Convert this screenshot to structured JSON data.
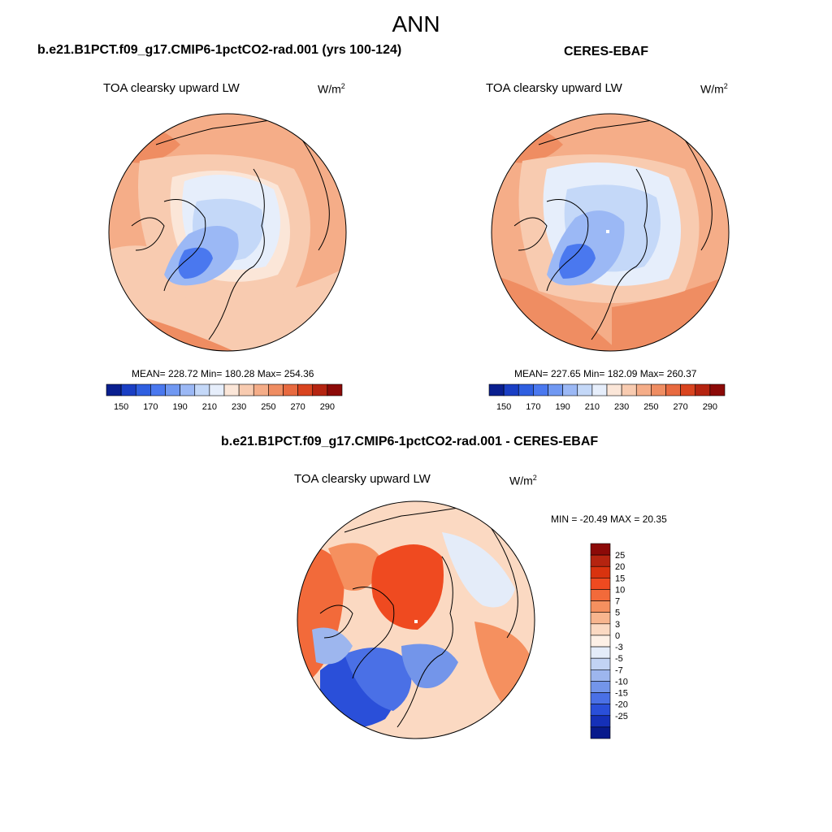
{
  "page": {
    "title": "ANN"
  },
  "panels": [
    {
      "title": "b.e21.B1PCT.f09_g17.CMIP6-1pctCO2-rad.001 (yrs 100-124)",
      "variable": "TOA clearsky upward LW",
      "units": "W/m",
      "units_exp": "2",
      "stats": "MEAN= 228.72  Min= 180.28  Max= 254.36"
    },
    {
      "title": "CERES-EBAF",
      "variable": "TOA clearsky upward LW",
      "units": "W/m",
      "units_exp": "2",
      "stats": "MEAN= 227.65  Min= 182.09  Max= 260.37"
    }
  ],
  "diff_panel": {
    "title": "b.e21.B1PCT.f09_g17.CMIP6-1pctCO2-rad.001 - CERES-EBAF",
    "variable": "TOA clearsky upward LW",
    "units": "W/m",
    "units_exp": "2",
    "minmax": "MIN = -20.49 MAX =  20.35"
  },
  "colorbar_abs": {
    "colors": [
      "#0a1f8f",
      "#1a3fc4",
      "#2f5fe0",
      "#4a78ef",
      "#7098f2",
      "#9bb8f5",
      "#c4d8f8",
      "#e6eefb",
      "#fbe6d8",
      "#f8cbb0",
      "#f5ad88",
      "#ef8d62",
      "#e86a40",
      "#d9441f",
      "#b52410",
      "#8c0a08"
    ],
    "labels": [
      "150",
      "170",
      "190",
      "210",
      "230",
      "250",
      "270",
      "290"
    ]
  },
  "colorbar_diff": {
    "colors": [
      "#8c0a08",
      "#b52410",
      "#d9330f",
      "#ef4a20",
      "#f26a3a",
      "#f5905f",
      "#f8b58e",
      "#fbd9c2",
      "#fdf0e6",
      "#e4ecf9",
      "#c2d3f4",
      "#9db6ee",
      "#7395ea",
      "#4a70e6",
      "#2a4fd9",
      "#1530b8",
      "#081a8c"
    ],
    "labels": [
      "25",
      "20",
      "15",
      "10",
      "7",
      "5",
      "3",
      "0",
      "-3",
      "-5",
      "-7",
      "-10",
      "-15",
      "-20",
      "-25"
    ]
  }
}
